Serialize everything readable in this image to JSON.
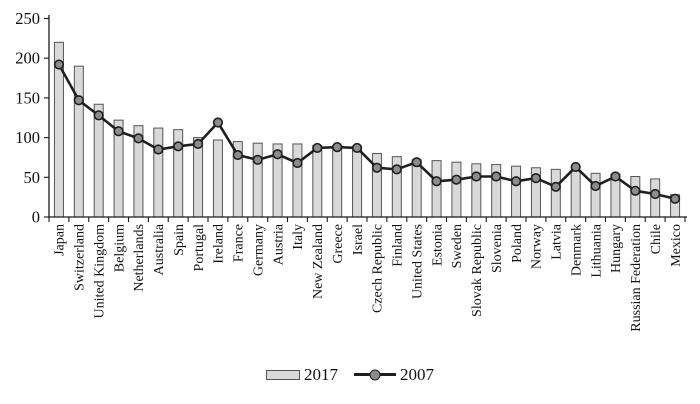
{
  "chart_data": {
    "type": "bar",
    "title": "",
    "xlabel": "",
    "ylabel": "",
    "ylim": [
      0,
      250
    ],
    "yticks": [
      0,
      50,
      100,
      150,
      200,
      250
    ],
    "grid": false,
    "legend_position": "bottom",
    "categories": [
      "Japan",
      "Switzerland",
      "United Kingdom",
      "Belgium",
      "Netherlands",
      "Australia",
      "Spain",
      "Portugal",
      "Ireland",
      "France",
      "Germany",
      "Austria",
      "Italy",
      "New Zealand",
      "Greece",
      "Israel",
      "Czech Republic",
      "Finland",
      "United States",
      "Estonia",
      "Sweden",
      "Slovak Republic",
      "Slovenia",
      "Poland",
      "Norway",
      "Latvia",
      "Denmark",
      "Lithuania",
      "Hungary",
      "Russian Federation",
      "Chile",
      "Mexico"
    ],
    "series": [
      {
        "name": "2017",
        "type": "bar",
        "values": [
          220,
          190,
          142,
          122,
          115,
          112,
          110,
          100,
          97,
          95,
          93,
          92,
          92,
          90,
          90,
          89,
          80,
          76,
          72,
          71,
          69,
          67,
          66,
          64,
          62,
          60,
          58,
          55,
          54,
          51,
          48,
          28
        ]
      },
      {
        "name": "2007",
        "type": "line",
        "values": [
          192,
          147,
          128,
          108,
          99,
          85,
          89,
          92,
          119,
          78,
          72,
          79,
          68,
          87,
          88,
          87,
          62,
          60,
          69,
          45,
          47,
          51,
          51,
          45,
          49,
          38,
          63,
          39,
          51,
          33,
          29,
          23
        ]
      }
    ],
    "colors": {
      "bar_fill": "#d9d9d9",
      "bar_stroke": "#555555",
      "line": "#1f1f1f",
      "marker_fill": "#8c8c8c",
      "axis": "#1a1a1a"
    }
  }
}
